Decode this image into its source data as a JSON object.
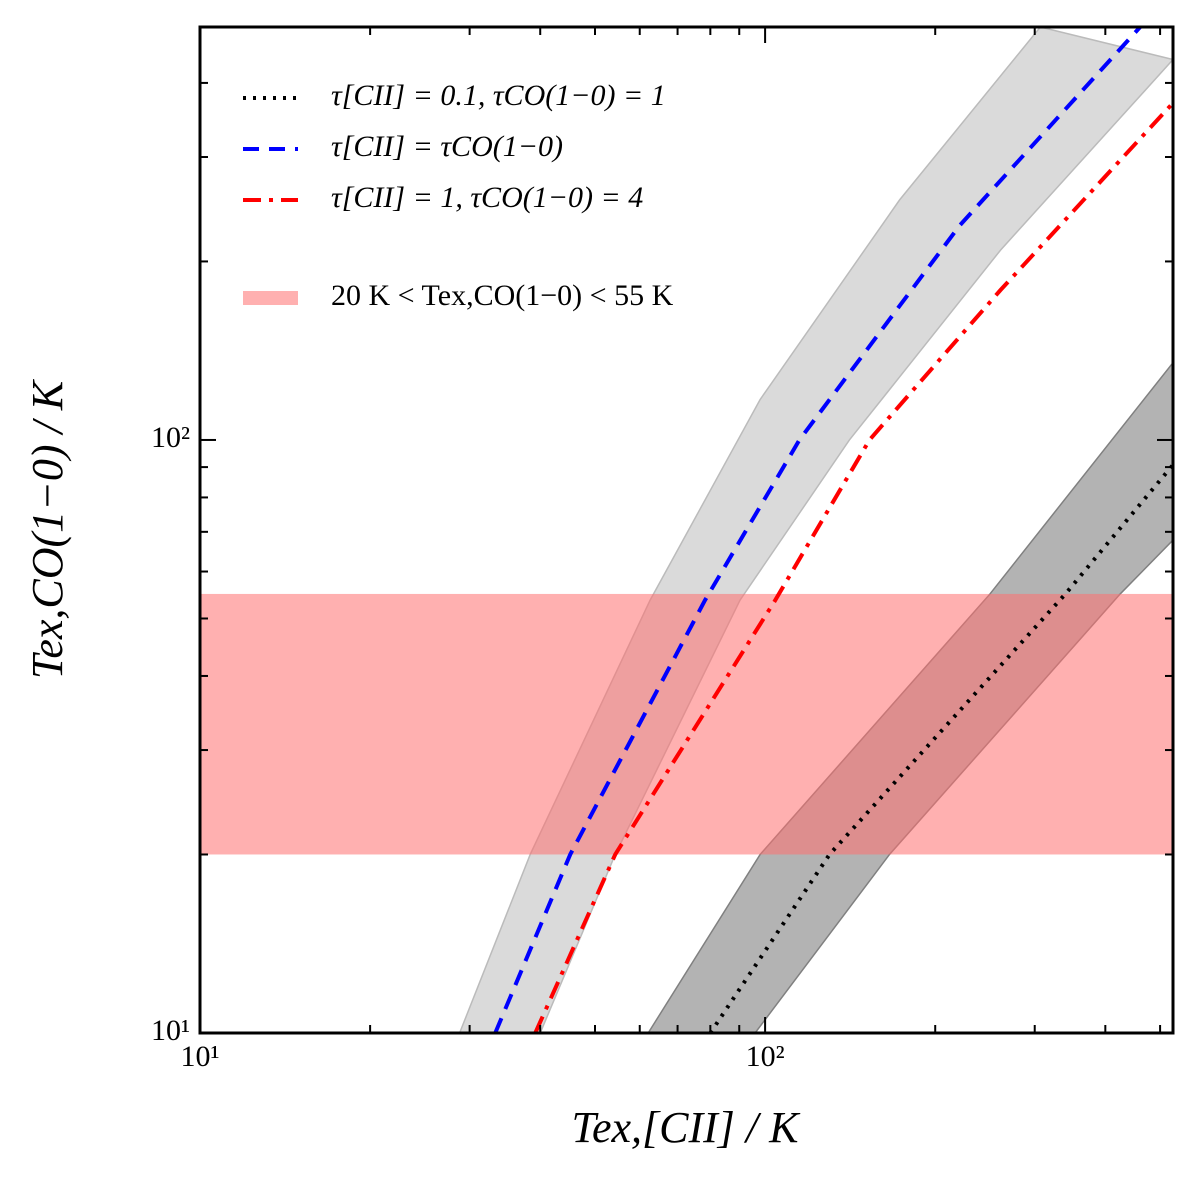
{
  "chart_data": {
    "type": "line",
    "xlabel": "Tex,[CII] / K",
    "ylabel": "Tex,CO(1−0) / K",
    "xscale": "log",
    "yscale": "log",
    "xlim": [
      10,
      527
    ],
    "ylim": [
      10,
      497
    ],
    "xticks": [
      {
        "value": 10,
        "label": "10¹"
      },
      {
        "value": 100,
        "label": "10²"
      }
    ],
    "yticks": [
      {
        "value": 10,
        "label": "10¹"
      },
      {
        "value": 100,
        "label": "10²"
      }
    ],
    "xminor_ticks": [
      20,
      30,
      40,
      50,
      60,
      70,
      80,
      90,
      200,
      300,
      400,
      500
    ],
    "yminor_ticks": [
      20,
      30,
      40,
      50,
      60,
      70,
      80,
      90,
      200,
      300,
      400
    ],
    "legend": "upper left",
    "series": [
      {
        "name": "τ[CII] = 0.1, τCO(1−0) = 1",
        "color": "#000000",
        "style": "dotted",
        "x": [
          80,
          130,
          340,
          527
        ],
        "values": [
          10,
          20,
          55,
          90.8
        ]
      },
      {
        "name": "τ[CII] = τCO(1−0)",
        "color": "#0000ff",
        "style": "dashed",
        "x": [
          33.3,
          45.2,
          78.3,
          115,
          221,
          461
        ],
        "values": [
          10,
          20,
          53.7,
          100,
          230,
          497
        ]
      },
      {
        "name": "τ[CII] = 1, τCO(1−0) = 4",
        "color": "#ff0000",
        "style": "dashdot",
        "x": [
          39.2,
          54.3,
          104,
          153,
          261,
          527
        ],
        "values": [
          10,
          20,
          53.5,
          100,
          179,
          370
        ]
      }
    ],
    "bands": [
      {
        "color": "#bbbbbb",
        "opacity": 0.55,
        "left": {
          "x": [
            28.8,
            38.4,
            62.6,
            98,
            173,
            307
          ],
          "values": [
            10,
            20,
            53.7,
            117,
            254,
            497
          ]
        },
        "right": {
          "x": [
            40,
            54.3,
            90.3,
            141,
            261,
            527
          ],
          "values": [
            10,
            20,
            53.7,
            100,
            209,
            438
          ]
        }
      },
      {
        "color": "#808080",
        "opacity": 0.6,
        "left": {
          "x": [
            62.1,
            98,
            250,
            527
          ],
          "values": [
            10,
            20,
            55,
            135
          ]
        },
        "right": {
          "x": [
            96,
            166,
            425,
            527
          ],
          "values": [
            10,
            20,
            55,
            67.8
          ]
        }
      }
    ],
    "hband": {
      "name": "20 K < Tex,CO(1−0) < 55 K",
      "color": "#ff7070",
      "opacity": 0.55,
      "values": [
        20,
        55
      ]
    }
  }
}
